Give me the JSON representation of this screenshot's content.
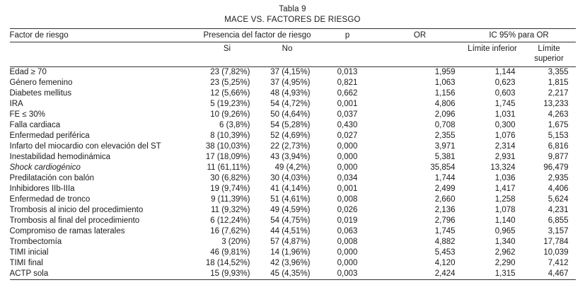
{
  "table": {
    "caption": "Tabla 9",
    "title": "MACE VS. FACTORES DE RIESGO",
    "headers": {
      "factor": "Factor de riesgo",
      "presencia": "Presencia del factor de riesgo",
      "si": "Si",
      "no": "No",
      "p": "p",
      "or": "OR",
      "ic": "IC 95% para OR",
      "lim_inf": "Límite inferior",
      "lim_sup": "Límite superior"
    },
    "rows": [
      {
        "factor": "Edad ≥ 70",
        "si": "23 (7,82%)",
        "no": "37 (4,15%)",
        "p": "0,013",
        "or": "1,959",
        "li": "1,144",
        "ls": "3,355"
      },
      {
        "factor": "Género femenino",
        "si": "23 (5,25%)",
        "no": "37 (4,95%)",
        "p": "0,821",
        "or": "1,063",
        "li": "0,623",
        "ls": "1,815"
      },
      {
        "factor": "Diabetes mellitus",
        "si": "12 (5,66%)",
        "no": "48 (4,93%)",
        "p": "0,662",
        "or": "1,156",
        "li": "0,603",
        "ls": "2,217"
      },
      {
        "factor": "IRA",
        "si": "5 (19,23%)",
        "no": "54 (4,72%)",
        "p": "0,001",
        "or": "4,806",
        "li": "1,745",
        "ls": "13,233"
      },
      {
        "factor": "FE ≤ 30%",
        "si": "10 (9,26%)",
        "no": "50 (4,64%)",
        "p": "0,037",
        "or": "2,096",
        "li": "1,031",
        "ls": "4,263"
      },
      {
        "factor": "Falla cardiaca",
        "si": "6 (3,8%)",
        "no": "54 (5,28%)",
        "p": "0,430",
        "or": "0,708",
        "li": "0,300",
        "ls": "1,675"
      },
      {
        "factor": "Enfermedad periférica",
        "si": "8 (10,39%)",
        "no": "52 (4,69%)",
        "p": "0,027",
        "or": "2,355",
        "li": "1,076",
        "ls": "5,153"
      },
      {
        "factor": "Infarto del miocardio con elevación del ST",
        "si": "38 (10,03%)",
        "no": "22 (2,73%)",
        "p": "0,000",
        "or": "3,971",
        "li": "2,314",
        "ls": "6,816"
      },
      {
        "factor": "Inestabilidad hemodinámica",
        "si": "17 (18,09%)",
        "no": "43 (3,94%)",
        "p": "0,000",
        "or": "5,381",
        "li": "2,931",
        "ls": "9,877"
      },
      {
        "factor": "Shock cardiogénico",
        "italic": true,
        "si": "11 (61,11%)",
        "no": "49 (4,2%)",
        "p": "0,000",
        "or": "35,854",
        "li": "13,324",
        "ls": "96,479"
      },
      {
        "factor": "Predilatación con balón",
        "si": "30 (6,82%)",
        "no": "30 (4,03%)",
        "p": "0,034",
        "or": "1,744",
        "li": "1,036",
        "ls": "2,935"
      },
      {
        "factor": "Inhibidores IIb-IIIa",
        "si": "19 (9,74%)",
        "no": "41 (4,14%)",
        "p": "0,001",
        "or": "2,499",
        "li": "1,417",
        "ls": "4,406"
      },
      {
        "factor": "Enfermedad de tronco",
        "si": "9 (11,39%)",
        "no": "51 (4,61%)",
        "p": "0,008",
        "or": "2,660",
        "li": "1,258",
        "ls": "5,624"
      },
      {
        "factor": "Trombosis al inicio del procedimiento",
        "si": "11 (9,32%)",
        "no": "49 (4,59%)",
        "p": "0,026",
        "or": "2,136",
        "li": "1,078",
        "ls": "4,231"
      },
      {
        "factor": "Trombosis al final del procedimiento",
        "si": "6 (12,24%)",
        "no": "54 (4,75%)",
        "p": "0,019",
        "or": "2,796",
        "li": "1,140",
        "ls": "6,855"
      },
      {
        "factor": "Compromiso de ramas laterales",
        "si": "16 (7,62%)",
        "no": "44 (4,51%)",
        "p": "0,063",
        "or": "1,745",
        "li": "0,965",
        "ls": "3,157"
      },
      {
        "factor": "Trombectomía",
        "si": "3 (20%)",
        "no": "57 (4,87%)",
        "p": "0,008",
        "or": "4,882",
        "li": "1,340",
        "ls": "17,784"
      },
      {
        "factor": "TIMI inicial",
        "si": "46 (9,81%)",
        "no": "14 (1,96%)",
        "p": "0,000",
        "or": "5,453",
        "li": "2,962",
        "ls": "10,039"
      },
      {
        "factor": "TIMI final",
        "si": "18 (14,52%)",
        "no": "42 (3,96%)",
        "p": "0,000",
        "or": "4,120",
        "li": "2,290",
        "ls": "7,412"
      },
      {
        "factor": "ACTP sola",
        "si": "15 (9,93%)",
        "no": "45 (4,35%)",
        "p": "0,003",
        "or": "2,424",
        "li": "1,315",
        "ls": "4,467"
      }
    ]
  }
}
